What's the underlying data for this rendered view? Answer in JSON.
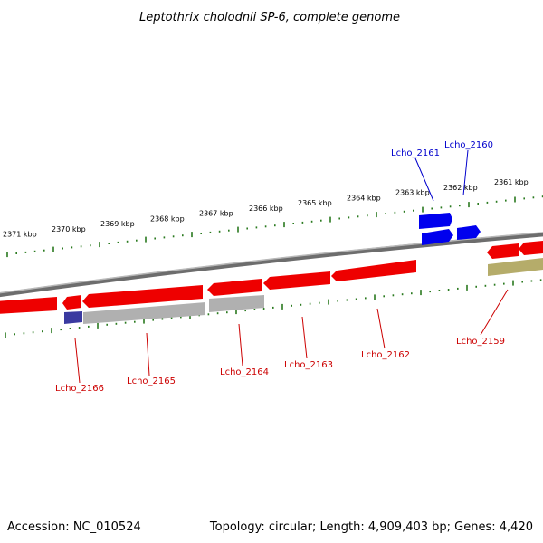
{
  "title": "Leptothrix cholodnii SP-6, complete genome",
  "footer": {
    "accession": "Accession: NC_010524",
    "summary": "Topology: circular; Length: 4,909,403 bp; Genes: 4,420"
  },
  "colors": {
    "forward_gene": "#0000ee",
    "reverse_gene": "#ee0000",
    "pseudo_gene": "#b0b0b0",
    "olive_gene": "#b5ac6a",
    "ticks": "#2a7a1f",
    "backbone": "#808080",
    "label_forward": "#0000cc",
    "label_reverse": "#cc0000"
  },
  "scale_labels": [
    "2371 kbp",
    "2370 kbp",
    "2369 kbp",
    "2368 kbp",
    "2367 kbp",
    "2366 kbp",
    "2365 kbp",
    "2364 kbp",
    "2363 kbp",
    "2362 kbp",
    "2361 kbp"
  ],
  "genes": [
    {
      "label": "Lcho_2161",
      "strand": "forward"
    },
    {
      "label": "Lcho_2160",
      "strand": "forward"
    },
    {
      "label": "Lcho_2166",
      "strand": "reverse"
    },
    {
      "label": "Lcho_2165",
      "strand": "reverse"
    },
    {
      "label": "Lcho_2164",
      "strand": "reverse"
    },
    {
      "label": "Lcho_2163",
      "strand": "reverse"
    },
    {
      "label": "Lcho_2162",
      "strand": "reverse"
    },
    {
      "label": "Lcho_2159",
      "strand": "reverse"
    }
  ]
}
